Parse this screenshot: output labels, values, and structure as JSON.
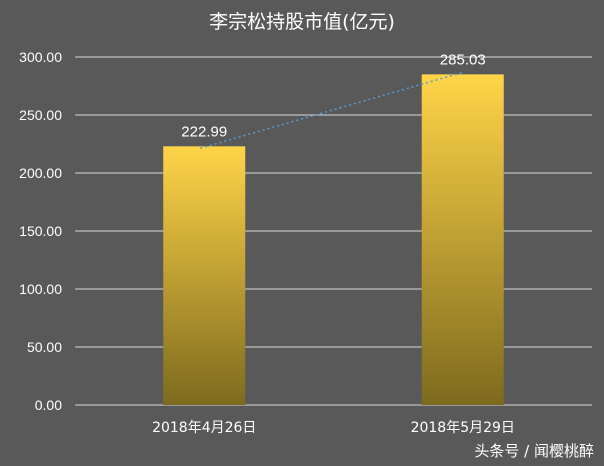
{
  "chart_data": {
    "type": "bar",
    "title": "李宗松持股市值(亿元)",
    "categories": [
      "2018年4月26日",
      "2018年5月29日"
    ],
    "series": [
      {
        "values": [
          222.99,
          285.03
        ]
      }
    ],
    "data_labels": [
      "222.99",
      "285.03"
    ],
    "y_ticks": [
      "0.00",
      "50.00",
      "100.00",
      "150.00",
      "200.00",
      "250.00",
      "300.00"
    ],
    "ylim": [
      0,
      300
    ],
    "grid": true,
    "trendline": {
      "style": "dotted",
      "color": "#5b9bd5"
    },
    "colors": {
      "background": "#595959",
      "bar_top": "#ffd447",
      "bar_bottom": "#7d6a1e",
      "grid": "#d9d9d9",
      "text": "#ffffff"
    }
  },
  "watermark": "头条号 / 闻樱桃醉"
}
